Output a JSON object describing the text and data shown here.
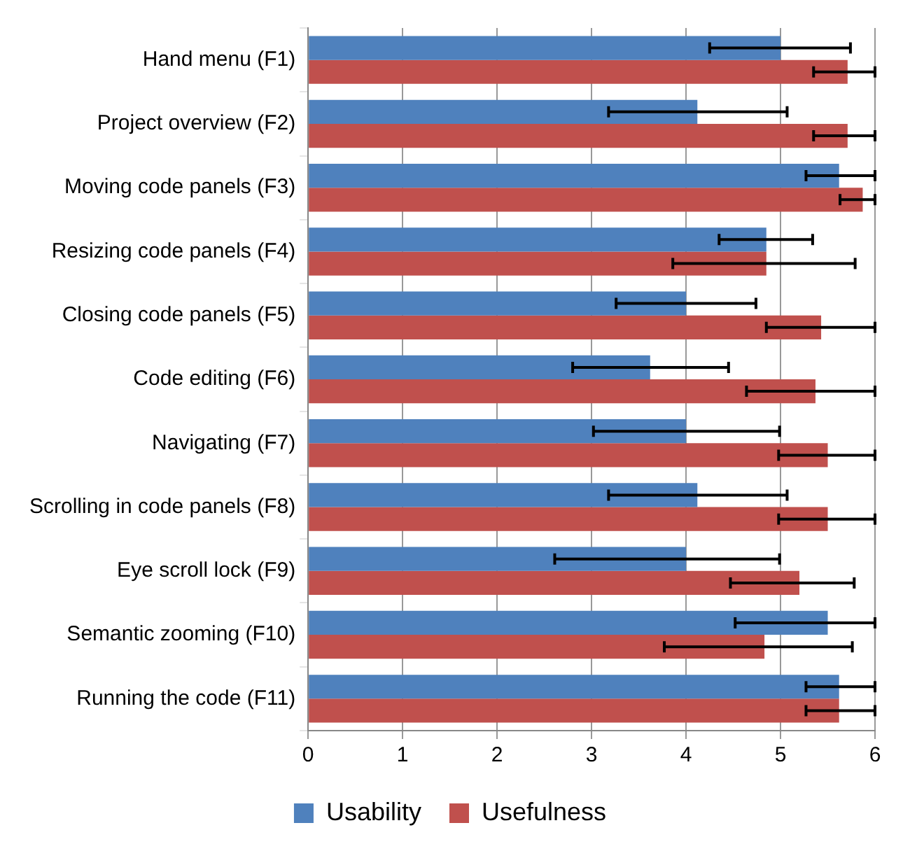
{
  "chart_data": {
    "type": "bar",
    "orientation": "horizontal",
    "categories": [
      "Hand menu (F1)",
      "Project overview (F2)",
      "Moving code panels (F3)",
      "Resizing code panels (F4)",
      "Closing code panels (F5)",
      "Code editing (F6)",
      "Navigating (F7)",
      "Scrolling in code panels (F8)",
      "Eye scroll lock (F9)",
      "Semantic zooming (F10)",
      "Running the code (F11)"
    ],
    "series": [
      {
        "name": "Usability",
        "color": "#4f81bd",
        "values": [
          5.0,
          4.12,
          5.62,
          4.85,
          4.0,
          3.62,
          4.0,
          4.12,
          4.0,
          5.5,
          5.62
        ],
        "errors": [
          [
            4.25,
            5.74
          ],
          [
            3.18,
            5.07
          ],
          [
            5.27,
            6
          ],
          [
            4.35,
            5.34
          ],
          [
            3.26,
            4.74
          ],
          [
            2.8,
            4.45
          ],
          [
            3.02,
            4.99
          ],
          [
            3.18,
            5.07
          ],
          [
            2.61,
            4.99
          ],
          [
            4.52,
            6
          ],
          [
            5.27,
            6
          ]
        ]
      },
      {
        "name": "Usefulness",
        "color": "#c0504d",
        "values": [
          5.71,
          5.71,
          5.87,
          4.85,
          5.43,
          5.37,
          5.5,
          5.5,
          5.2,
          4.83,
          5.62
        ],
        "errors": [
          [
            5.35,
            6
          ],
          [
            5.35,
            6
          ],
          [
            5.63,
            6
          ],
          [
            3.86,
            5.79
          ],
          [
            4.85,
            6
          ],
          [
            4.64,
            6
          ],
          [
            4.98,
            6
          ],
          [
            4.98,
            6
          ],
          [
            4.47,
            5.78
          ],
          [
            3.77,
            5.76
          ],
          [
            5.27,
            6
          ]
        ]
      }
    ],
    "xlim": [
      0,
      6
    ],
    "xticks": [
      0,
      1,
      2,
      3,
      4,
      5,
      6
    ],
    "grid": "x",
    "legend": "bottom"
  }
}
